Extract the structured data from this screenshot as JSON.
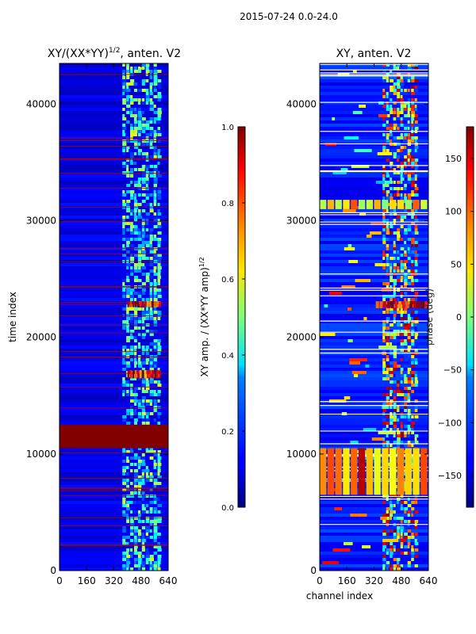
{
  "suptitle": "2015-07-24 0.0-24.0",
  "chart_data": [
    {
      "type": "heatmap",
      "title_main": "XY/(XX*YY)",
      "title_sup": "1/2",
      "title_tail": ", anten. V2",
      "xlabel": "",
      "ylabel": "time index",
      "xlim": [
        0,
        640
      ],
      "ylim": [
        0,
        43500
      ],
      "xticks": [
        0,
        160,
        320,
        480,
        640
      ],
      "xtick_labels": [
        "0",
        "160",
        "320",
        "480",
        "640"
      ],
      "yticks": [
        0,
        10000,
        20000,
        30000,
        40000
      ],
      "ytick_labels": [
        "0",
        "10000",
        "20000",
        "30000",
        "40000"
      ],
      "colorbar": {
        "label_main": "XY amp. / (XX*YY amp)",
        "label_sup": "1/2",
        "range": [
          0.0,
          1.0
        ],
        "ticks": [
          0.0,
          0.2,
          0.4,
          0.6,
          0.8,
          1.0
        ],
        "tick_labels": [
          "0.0",
          "0.2",
          "0.4",
          "0.6",
          "0.8",
          "1.0"
        ],
        "colormap": "jet"
      },
      "bands": [
        {
          "t_min": 10500,
          "t_max": 12500,
          "value": 1.0,
          "ch_min": 0,
          "ch_max": 640
        },
        {
          "t_min": 22600,
          "t_max": 23100,
          "value": 0.95,
          "ch_min": 400,
          "ch_max": 600
        },
        {
          "t_min": 16500,
          "t_max": 17200,
          "value": 0.9,
          "ch_min": 400,
          "ch_max": 600
        }
      ],
      "hot_channels": [
        400,
        500
      ]
    },
    {
      "type": "heatmap",
      "title_main": "XY, anten. V2",
      "xlabel": "channel index",
      "ylabel": "",
      "xlim": [
        0,
        640
      ],
      "ylim": [
        0,
        43500
      ],
      "xticks": [
        0,
        160,
        320,
        480,
        640
      ],
      "xtick_labels": [
        "0",
        "160",
        "320",
        "480",
        "640"
      ],
      "yticks": [
        0,
        10000,
        20000,
        30000,
        40000
      ],
      "ytick_labels": [
        "0",
        "10000",
        "20000",
        "30000",
        "40000"
      ],
      "colorbar": {
        "label_main": "phase (deg)",
        "range": [
          -180,
          180
        ],
        "ticks": [
          -150,
          -100,
          -50,
          0,
          50,
          100,
          150
        ],
        "tick_labels": [
          "−150",
          "−100",
          "−50",
          "0",
          "50",
          "100",
          "150"
        ],
        "colormap": "jet"
      },
      "bands": [
        {
          "t_min": 31000,
          "t_max": 31800,
          "value": 0.75,
          "ch_min": 0,
          "ch_max": 640
        },
        {
          "t_min": 22500,
          "t_max": 23100,
          "value": 0.95,
          "ch_min": 330,
          "ch_max": 640
        },
        {
          "t_min": 6500,
          "t_max": 10500,
          "value": 0.85,
          "ch_min": 0,
          "ch_max": 640
        }
      ],
      "hot_channels": [
        400,
        480
      ]
    }
  ]
}
